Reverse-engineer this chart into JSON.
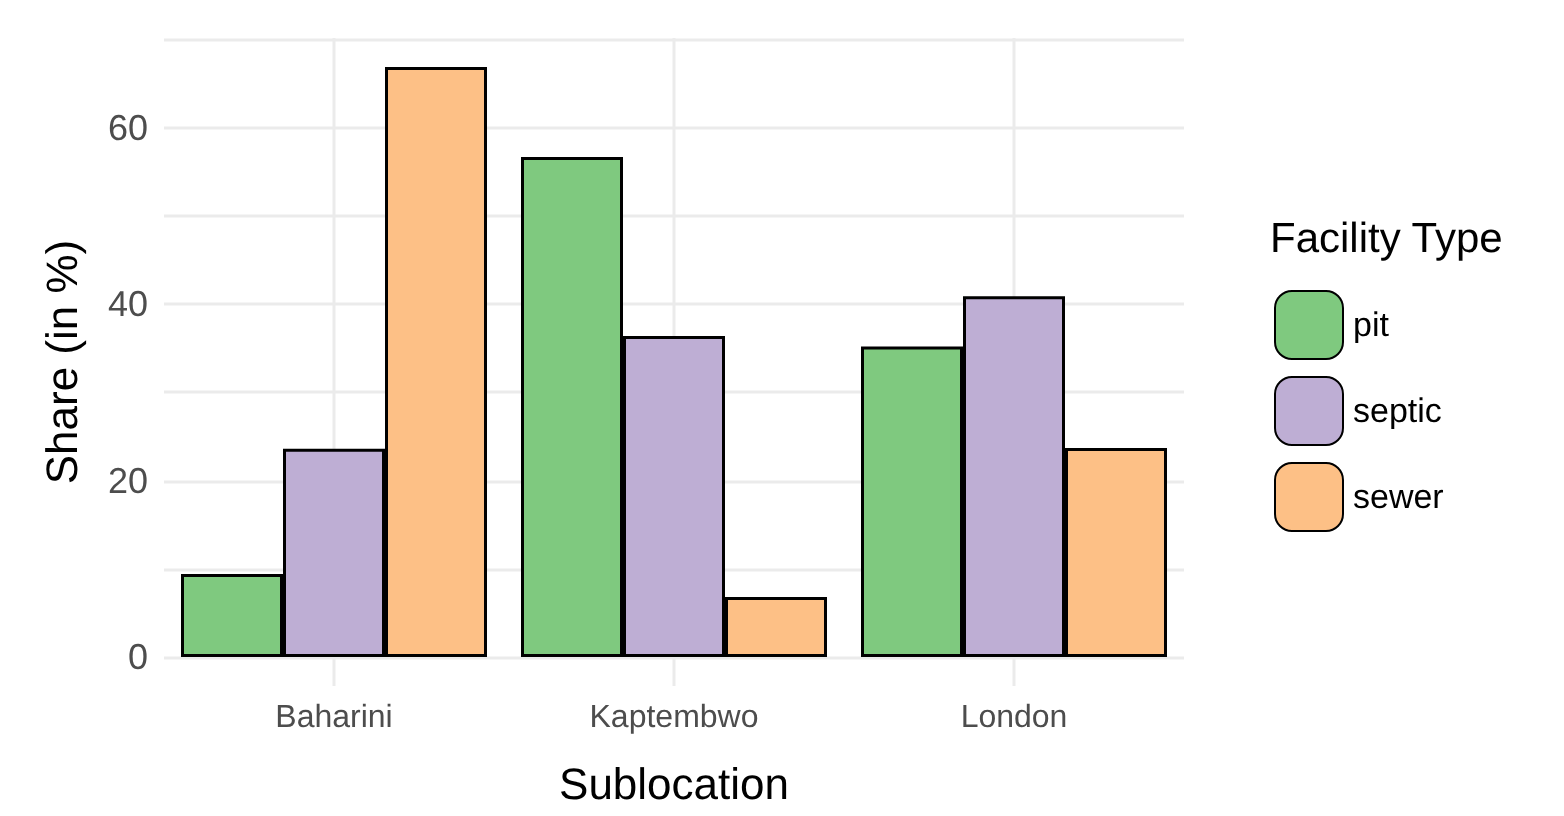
{
  "chart_data": {
    "type": "bar",
    "xlabel": "Sublocation",
    "ylabel": "Share (in %)",
    "legend_title": "Facility Type",
    "categories": [
      "Baharini",
      "Kaptembwo",
      "London"
    ],
    "series": [
      {
        "name": "pit",
        "color": "#7fc97f",
        "values": [
          9.4,
          56.7,
          35.2
        ]
      },
      {
        "name": "septic",
        "color": "#beaed4",
        "values": [
          23.6,
          36.4,
          40.9
        ]
      },
      {
        "name": "sewer",
        "color": "#fdc086",
        "values": [
          66.9,
          6.8,
          23.7
        ]
      }
    ],
    "ylim": [
      -3.3,
      70.2
    ],
    "yticks": [
      0,
      {
        "value": 10,
        "label": null
      },
      20,
      {
        "value": 30,
        "label": null
      },
      40,
      {
        "value": 50,
        "label": null
      },
      60,
      {
        "value": 70,
        "label": null
      }
    ],
    "grid": true,
    "legend": "right"
  }
}
